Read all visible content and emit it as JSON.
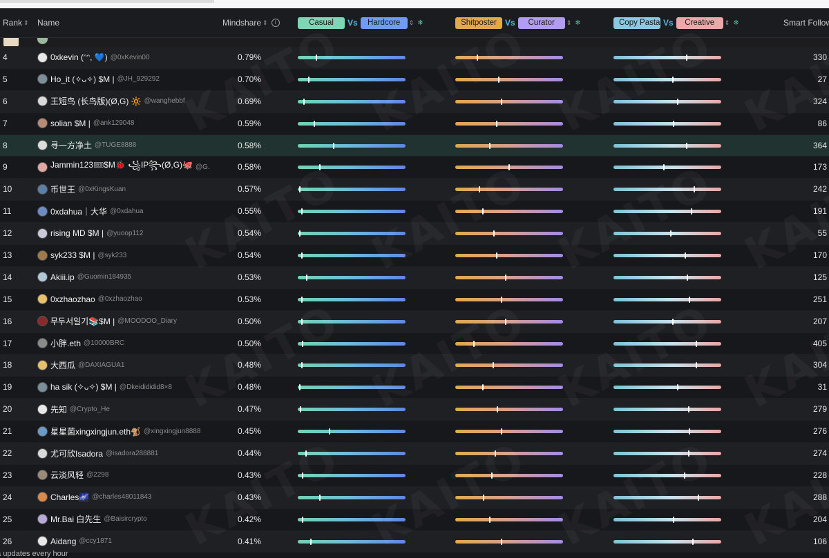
{
  "header": {
    "rank": "Rank",
    "name": "Name",
    "mindshare": "Mindshare",
    "smart_followers": "Smart Follow",
    "vs": "Vs",
    "pair1": {
      "left": "Casual",
      "right": "Hardcore",
      "left_color": "#7fd6b7",
      "right_color": "#6f9cf0"
    },
    "pair2": {
      "left": "Shitposter",
      "right": "Curator",
      "left_color": "#e2a94c",
      "right_color": "#b19cf0"
    },
    "pair3": {
      "left": "Copy Pasta",
      "right": "Creative",
      "left_color": "#8cc8e0",
      "right_color": "#eaa8a8"
    }
  },
  "footer": "ata updates every hour",
  "watermark": "KAITO",
  "rows": [
    {
      "rank": "4",
      "name": "0xkevin (ᵔᵔ, 💙)",
      "handle": "@0xKevin00",
      "mindshare": "0.79%",
      "smart": "330",
      "casual_hardcore": 0.17,
      "shitposter_curator": 0.2,
      "copypasta_creative": 0.68,
      "avatar_color": "#e8e8e8"
    },
    {
      "rank": "5",
      "name": "Ho_it (✧ᴗ✧) $M |",
      "handle": "@JH_929292",
      "mindshare": "0.70%",
      "smart": "27",
      "casual_hardcore": 0.1,
      "shitposter_curator": 0.4,
      "copypasta_creative": 0.55,
      "avatar_color": "#7a8f9a"
    },
    {
      "rank": "6",
      "name": "王短鸟 (长鸟版)(Ø,G) 🔆",
      "handle": "@wanghebbf",
      "mindshare": "0.69%",
      "smart": "324",
      "casual_hardcore": 0.05,
      "shitposter_curator": 0.43,
      "copypasta_creative": 0.6,
      "avatar_color": "#d9d9d9"
    },
    {
      "rank": "7",
      "name": "solian $M |",
      "handle": "@ank129048",
      "mindshare": "0.59%",
      "smart": "86",
      "casual_hardcore": 0.15,
      "shitposter_curator": 0.38,
      "copypasta_creative": 0.56,
      "avatar_color": "#b98a74"
    },
    {
      "rank": "8",
      "name": "寻一方净土",
      "handle": "@TUGE8888",
      "mindshare": "0.58%",
      "smart": "364",
      "casual_hardcore": 0.33,
      "shitposter_curator": 0.32,
      "copypasta_creative": 0.68,
      "avatar_color": "#dcdcdc",
      "highlight": true
    },
    {
      "rank": "9",
      "name": "Jammin123🎟$M🐞 ꧁IP꧂(Ø,G)🐙",
      "handle": "@G...",
      "mindshare": "0.58%",
      "smart": "173",
      "casual_hardcore": 0.2,
      "shitposter_curator": 0.5,
      "copypasta_creative": 0.47,
      "avatar_color": "#e0a8a0"
    },
    {
      "rank": "10",
      "name": "币世王",
      "handle": "@0xKingsKuan",
      "mindshare": "0.57%",
      "smart": "242",
      "casual_hardcore": 0.01,
      "shitposter_curator": 0.22,
      "copypasta_creative": 0.75,
      "avatar_color": "#5a7fa8"
    },
    {
      "rank": "11",
      "name": "0xdahua｜大华",
      "handle": "@0xdahua",
      "mindshare": "0.55%",
      "smart": "191",
      "casual_hardcore": 0.03,
      "shitposter_curator": 0.25,
      "copypasta_creative": 0.73,
      "avatar_color": "#6d8bc4"
    },
    {
      "rank": "12",
      "name": "rising MD $M |",
      "handle": "@yuoop112",
      "mindshare": "0.54%",
      "smart": "55",
      "casual_hardcore": 0.01,
      "shitposter_curator": 0.36,
      "copypasta_creative": 0.53,
      "avatar_color": "#c9c9d9"
    },
    {
      "rank": "13",
      "name": "syk233 $M |",
      "handle": "@syk233",
      "mindshare": "0.54%",
      "smart": "170",
      "casual_hardcore": 0.03,
      "shitposter_curator": 0.38,
      "copypasta_creative": 0.67,
      "avatar_color": "#a27a4a"
    },
    {
      "rank": "14",
      "name": "Akiii.ip",
      "handle": "@Guomin184935",
      "mindshare": "0.53%",
      "smart": "125",
      "casual_hardcore": 0.08,
      "shitposter_curator": 0.47,
      "copypasta_creative": 0.69,
      "avatar_color": "#b0c8d8"
    },
    {
      "rank": "15",
      "name": "0xzhaozhao",
      "handle": "@0xzhaozhao",
      "mindshare": "0.53%",
      "smart": "251",
      "casual_hardcore": 0.03,
      "shitposter_curator": 0.43,
      "copypasta_creative": 0.71,
      "avatar_color": "#e6c06a"
    },
    {
      "rank": "16",
      "name": "무두서일기📚$M |",
      "handle": "@MOODOO_Diary",
      "mindshare": "0.50%",
      "smart": "207",
      "casual_hardcore": 0.03,
      "shitposter_curator": 0.47,
      "copypasta_creative": 0.55,
      "avatar_color": "#8a2a2a"
    },
    {
      "rank": "17",
      "name": "小胖.eth",
      "handle": "@10000BRC",
      "mindshare": "0.50%",
      "smart": "405",
      "casual_hardcore": 0.04,
      "shitposter_curator": 0.17,
      "copypasta_creative": 0.77,
      "avatar_color": "#8a8a8a"
    },
    {
      "rank": "18",
      "name": "大西瓜",
      "handle": "@DAXIAGUA1",
      "mindshare": "0.48%",
      "smart": "304",
      "casual_hardcore": 0.03,
      "shitposter_curator": 0.35,
      "copypasta_creative": 0.77,
      "avatar_color": "#e6c06a"
    },
    {
      "rank": "19",
      "name": "ha sik (✧ᴗ✧) $M |",
      "handle": "@Dkeidididid8×8",
      "mindshare": "0.48%",
      "smart": "31",
      "casual_hardcore": 0.01,
      "shitposter_curator": 0.25,
      "copypasta_creative": 0.6,
      "avatar_color": "#7a8f9a"
    },
    {
      "rank": "20",
      "name": "先知",
      "handle": "@Crypto_He",
      "mindshare": "0.47%",
      "smart": "279",
      "casual_hardcore": 0.02,
      "shitposter_curator": 0.39,
      "copypasta_creative": 0.7,
      "avatar_color": "#e8e8e8"
    },
    {
      "rank": "21",
      "name": "星星菌xingxingjun.eth🐒",
      "handle": "@xingxingjun8888",
      "mindshare": "0.45%",
      "smart": "276",
      "casual_hardcore": 0.29,
      "shitposter_curator": 0.43,
      "copypasta_creative": 0.71,
      "avatar_color": "#6a9ac8"
    },
    {
      "rank": "22",
      "name": "尤可欣Isadora",
      "handle": "@isadora288881",
      "mindshare": "0.44%",
      "smart": "274",
      "casual_hardcore": 0.07,
      "shitposter_curator": 0.37,
      "copypasta_creative": 0.7,
      "avatar_color": "#d9d9d9"
    },
    {
      "rank": "23",
      "name": "云淡风轻",
      "handle": "@2298",
      "mindshare": "0.43%",
      "smart": "228",
      "casual_hardcore": 0.04,
      "shitposter_curator": 0.34,
      "copypasta_creative": 0.66,
      "avatar_color": "#9a8a7a"
    },
    {
      "rank": "24",
      "name": "Charles🌌",
      "handle": "@charles48011843",
      "mindshare": "0.43%",
      "smart": "288",
      "casual_hardcore": 0.2,
      "shitposter_curator": 0.26,
      "copypasta_creative": 0.79,
      "avatar_color": "#d88a4a"
    },
    {
      "rank": "25",
      "name": "Mr.Bai 白先生",
      "handle": "@Baisircrypto",
      "mindshare": "0.42%",
      "smart": "204",
      "casual_hardcore": 0.04,
      "shitposter_curator": 0.32,
      "copypasta_creative": 0.56,
      "avatar_color": "#b8a8d8"
    },
    {
      "rank": "26",
      "name": "Aidang",
      "handle": "@ccy1871",
      "mindshare": "0.41%",
      "smart": "106",
      "casual_hardcore": 0.12,
      "shitposter_curator": 0.43,
      "copypasta_creative": 0.74,
      "avatar_color": "#e8e8e8"
    }
  ]
}
